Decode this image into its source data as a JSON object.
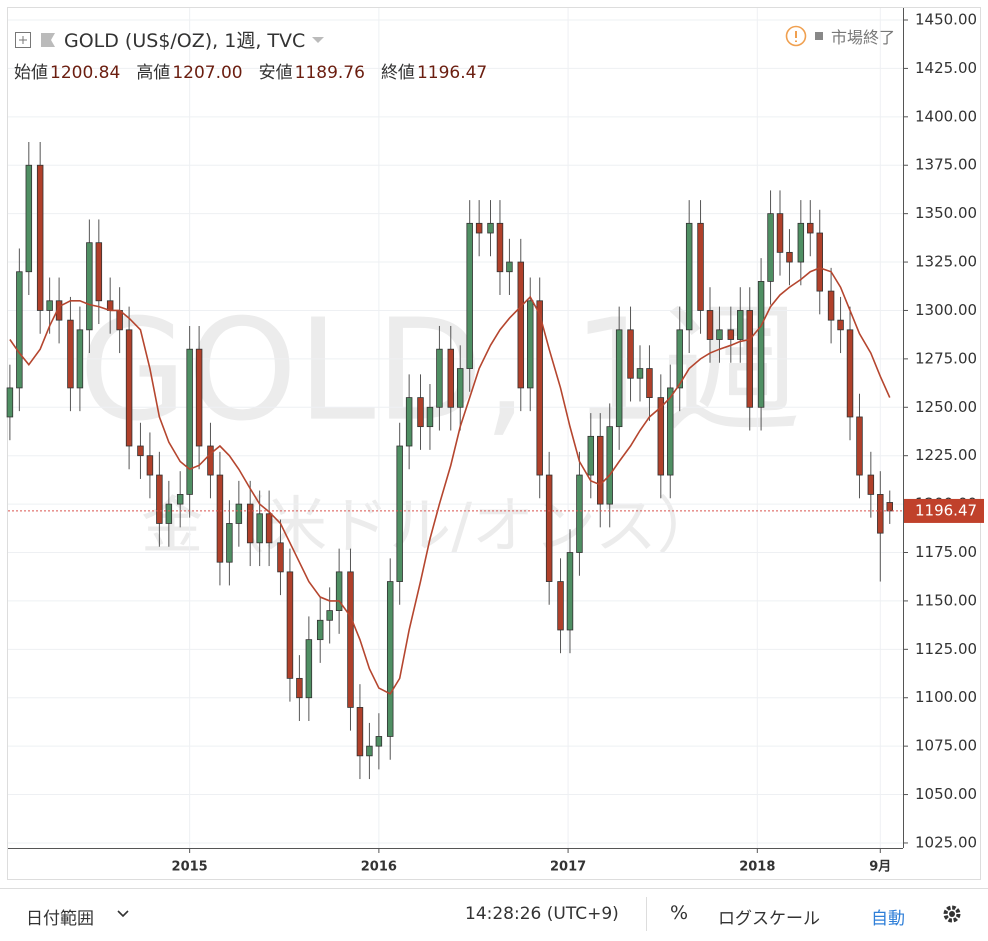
{
  "chart_data": {
    "type": "candlestick",
    "title": "GOLD (US$/OZ), 1週, TVC",
    "status": "市場終了",
    "watermark": "GOLD, 1週",
    "watermark_sub": "金（米ドル/オンス）",
    "header": [
      {
        "name": "始値",
        "value": "1200.84"
      },
      {
        "name": "高値",
        "value": "1207.00"
      },
      {
        "name": "安値",
        "value": "1189.76"
      },
      {
        "name": "終値",
        "value": "1196.47"
      }
    ],
    "last_price": {
      "value": 1196.47,
      "label": "1196.47"
    },
    "colors": {
      "up": "#4f8f63",
      "down": "#b0402a",
      "wick": "#555555",
      "ma": "#b5462f"
    },
    "grid": true,
    "x": [
      2014.05,
      2014.1,
      2014.15,
      2014.21,
      2014.26,
      2014.31,
      2014.37,
      2014.42,
      2014.47,
      2014.52,
      2014.58,
      2014.63,
      2014.68,
      2014.74,
      2014.79,
      2014.84,
      2014.89,
      2014.95,
      2015.0,
      2015.05,
      2015.11,
      2015.16,
      2015.21,
      2015.26,
      2015.32,
      2015.37,
      2015.42,
      2015.48,
      2015.53,
      2015.58,
      2015.63,
      2015.69,
      2015.74,
      2015.79,
      2015.85,
      2015.9,
      2015.95,
      2016.0,
      2016.06,
      2016.11,
      2016.16,
      2016.22,
      2016.27,
      2016.32,
      2016.38,
      2016.43,
      2016.48,
      2016.53,
      2016.59,
      2016.64,
      2016.69,
      2016.75,
      2016.8,
      2016.85,
      2016.9,
      2016.96,
      2017.01,
      2017.06,
      2017.12,
      2017.17,
      2017.22,
      2017.27,
      2017.33,
      2017.38,
      2017.43,
      2017.49,
      2017.54,
      2017.59,
      2017.64,
      2017.7,
      2017.75,
      2017.8,
      2017.86,
      2017.91,
      2017.96,
      2018.02,
      2018.07,
      2018.12,
      2018.17,
      2018.23,
      2018.28,
      2018.33,
      2018.39,
      2018.44,
      2018.49,
      2018.54,
      2018.6,
      2018.65,
      2018.7
    ],
    "open": [
      1245,
      1260,
      1320,
      1375,
      1300,
      1305,
      1295,
      1260,
      1290,
      1335,
      1305,
      1300,
      1290,
      1230,
      1225,
      1215,
      1190,
      1200,
      1205,
      1280,
      1230,
      1215,
      1170,
      1190,
      1200,
      1180,
      1195,
      1180,
      1165,
      1110,
      1100,
      1130,
      1140,
      1145,
      1165,
      1095,
      1070,
      1075,
      1080,
      1160,
      1230,
      1255,
      1240,
      1250,
      1280,
      1250,
      1270,
      1345,
      1340,
      1345,
      1320,
      1325,
      1260,
      1305,
      1215,
      1160,
      1135,
      1175,
      1215,
      1235,
      1200,
      1240,
      1290,
      1265,
      1270,
      1255,
      1215,
      1260,
      1290,
      1345,
      1300,
      1285,
      1290,
      1285,
      1300,
      1250,
      1315,
      1350,
      1330,
      1325,
      1345,
      1340,
      1310,
      1295,
      1290,
      1245,
      1215,
      1205,
      1200.84
    ],
    "high": [
      1272,
      1332,
      1387,
      1387,
      1317,
      1317,
      1307,
      1302,
      1347,
      1347,
      1317,
      1312,
      1302,
      1242,
      1237,
      1227,
      1212,
      1217,
      1292,
      1292,
      1242,
      1227,
      1202,
      1212,
      1212,
      1207,
      1207,
      1192,
      1177,
      1122,
      1142,
      1152,
      1157,
      1177,
      1177,
      1107,
      1087,
      1092,
      1172,
      1242,
      1267,
      1267,
      1262,
      1292,
      1292,
      1282,
      1357,
      1357,
      1357,
      1357,
      1337,
      1337,
      1317,
      1317,
      1227,
      1172,
      1187,
      1227,
      1247,
      1247,
      1252,
      1302,
      1302,
      1282,
      1282,
      1267,
      1272,
      1302,
      1357,
      1357,
      1312,
      1302,
      1302,
      1312,
      1312,
      1327,
      1362,
      1362,
      1342,
      1357,
      1357,
      1352,
      1322,
      1307,
      1302,
      1257,
      1227,
      1217,
      1207
    ],
    "low": [
      1233,
      1248,
      1308,
      1288,
      1288,
      1283,
      1248,
      1248,
      1278,
      1293,
      1288,
      1278,
      1218,
      1213,
      1203,
      1178,
      1178,
      1188,
      1193,
      1218,
      1203,
      1158,
      1158,
      1178,
      1168,
      1168,
      1168,
      1153,
      1098,
      1088,
      1088,
      1118,
      1128,
      1133,
      1083,
      1058,
      1058,
      1063,
      1068,
      1148,
      1218,
      1228,
      1228,
      1238,
      1238,
      1238,
      1258,
      1328,
      1328,
      1308,
      1308,
      1248,
      1248,
      1203,
      1148,
      1123,
      1123,
      1163,
      1203,
      1188,
      1188,
      1228,
      1253,
      1253,
      1243,
      1203,
      1203,
      1248,
      1278,
      1288,
      1273,
      1273,
      1273,
      1273,
      1238,
      1238,
      1303,
      1318,
      1313,
      1313,
      1328,
      1298,
      1283,
      1278,
      1233,
      1203,
      1193,
      1160,
      1189.76
    ],
    "close": [
      1260,
      1320,
      1375,
      1300,
      1305,
      1295,
      1260,
      1290,
      1335,
      1305,
      1300,
      1290,
      1230,
      1225,
      1215,
      1190,
      1200,
      1205,
      1280,
      1230,
      1215,
      1170,
      1190,
      1200,
      1180,
      1195,
      1180,
      1165,
      1110,
      1100,
      1130,
      1140,
      1145,
      1165,
      1095,
      1070,
      1075,
      1080,
      1160,
      1230,
      1255,
      1240,
      1250,
      1280,
      1250,
      1270,
      1345,
      1340,
      1345,
      1320,
      1325,
      1260,
      1305,
      1215,
      1160,
      1135,
      1175,
      1215,
      1235,
      1200,
      1240,
      1290,
      1265,
      1270,
      1255,
      1215,
      1260,
      1290,
      1345,
      1300,
      1285,
      1290,
      1285,
      1300,
      1250,
      1315,
      1350,
      1330,
      1325,
      1345,
      1340,
      1310,
      1295,
      1290,
      1245,
      1215,
      1205,
      1185,
      1196.47
    ],
    "ma": [
      1285,
      1278,
      1272,
      1280,
      1292,
      1302,
      1305,
      1305,
      1303,
      1302,
      1300,
      1300,
      1296,
      1290,
      1270,
      1245,
      1232,
      1222,
      1218,
      1220,
      1226,
      1230,
      1225,
      1218,
      1208,
      1200,
      1196,
      1190,
      1180,
      1170,
      1160,
      1152,
      1150,
      1150,
      1142,
      1130,
      1115,
      1105,
      1102,
      1110,
      1135,
      1160,
      1182,
      1200,
      1220,
      1240,
      1255,
      1270,
      1282,
      1290,
      1296,
      1302,
      1307,
      1298,
      1280,
      1260,
      1240,
      1222,
      1212,
      1210,
      1215,
      1222,
      1230,
      1238,
      1245,
      1250,
      1255,
      1262,
      1270,
      1275,
      1278,
      1280,
      1282,
      1284,
      1285,
      1292,
      1302,
      1308,
      1312,
      1316,
      1320,
      1322,
      1320,
      1312,
      1300,
      1288,
      1278,
      1266,
      1255
    ],
    "xlim": [
      2014.04,
      2018.77
    ],
    "xticks": [
      2015,
      2016,
      2017,
      2018,
      {
        "value": 2018.65,
        "label": "9月"
      }
    ],
    "ylim": [
      1022.4,
      1456.2
    ],
    "yticks": [
      {
        "value": 1025,
        "label": "1025.00"
      },
      {
        "value": 1050,
        "label": "1050.00"
      },
      {
        "value": 1075,
        "label": "1075.00"
      },
      {
        "value": 1100,
        "label": "1100.00"
      },
      {
        "value": 1125,
        "label": "1125.00"
      },
      {
        "value": 1150,
        "label": "1150.00"
      },
      {
        "value": 1175,
        "label": "1175.00"
      },
      {
        "value": 1200,
        "label": "1200.00"
      },
      {
        "value": 1225,
        "label": "1225.00"
      },
      {
        "value": 1250,
        "label": "1250.00"
      },
      {
        "value": 1275,
        "label": "1275.00"
      },
      {
        "value": 1300,
        "label": "1300.00"
      },
      {
        "value": 1325,
        "label": "1325.00"
      },
      {
        "value": 1350,
        "label": "1350.00"
      },
      {
        "value": 1375,
        "label": "1375.00"
      },
      {
        "value": 1400,
        "label": "1400.00"
      },
      {
        "value": 1425,
        "label": "1425.00"
      },
      {
        "value": 1450,
        "label": "1450.00"
      }
    ]
  },
  "footer": {
    "date_range": "日付範囲",
    "time": "14:28:26 (UTC+9)",
    "percent": "%",
    "log": "ログスケール",
    "auto": "自動"
  }
}
